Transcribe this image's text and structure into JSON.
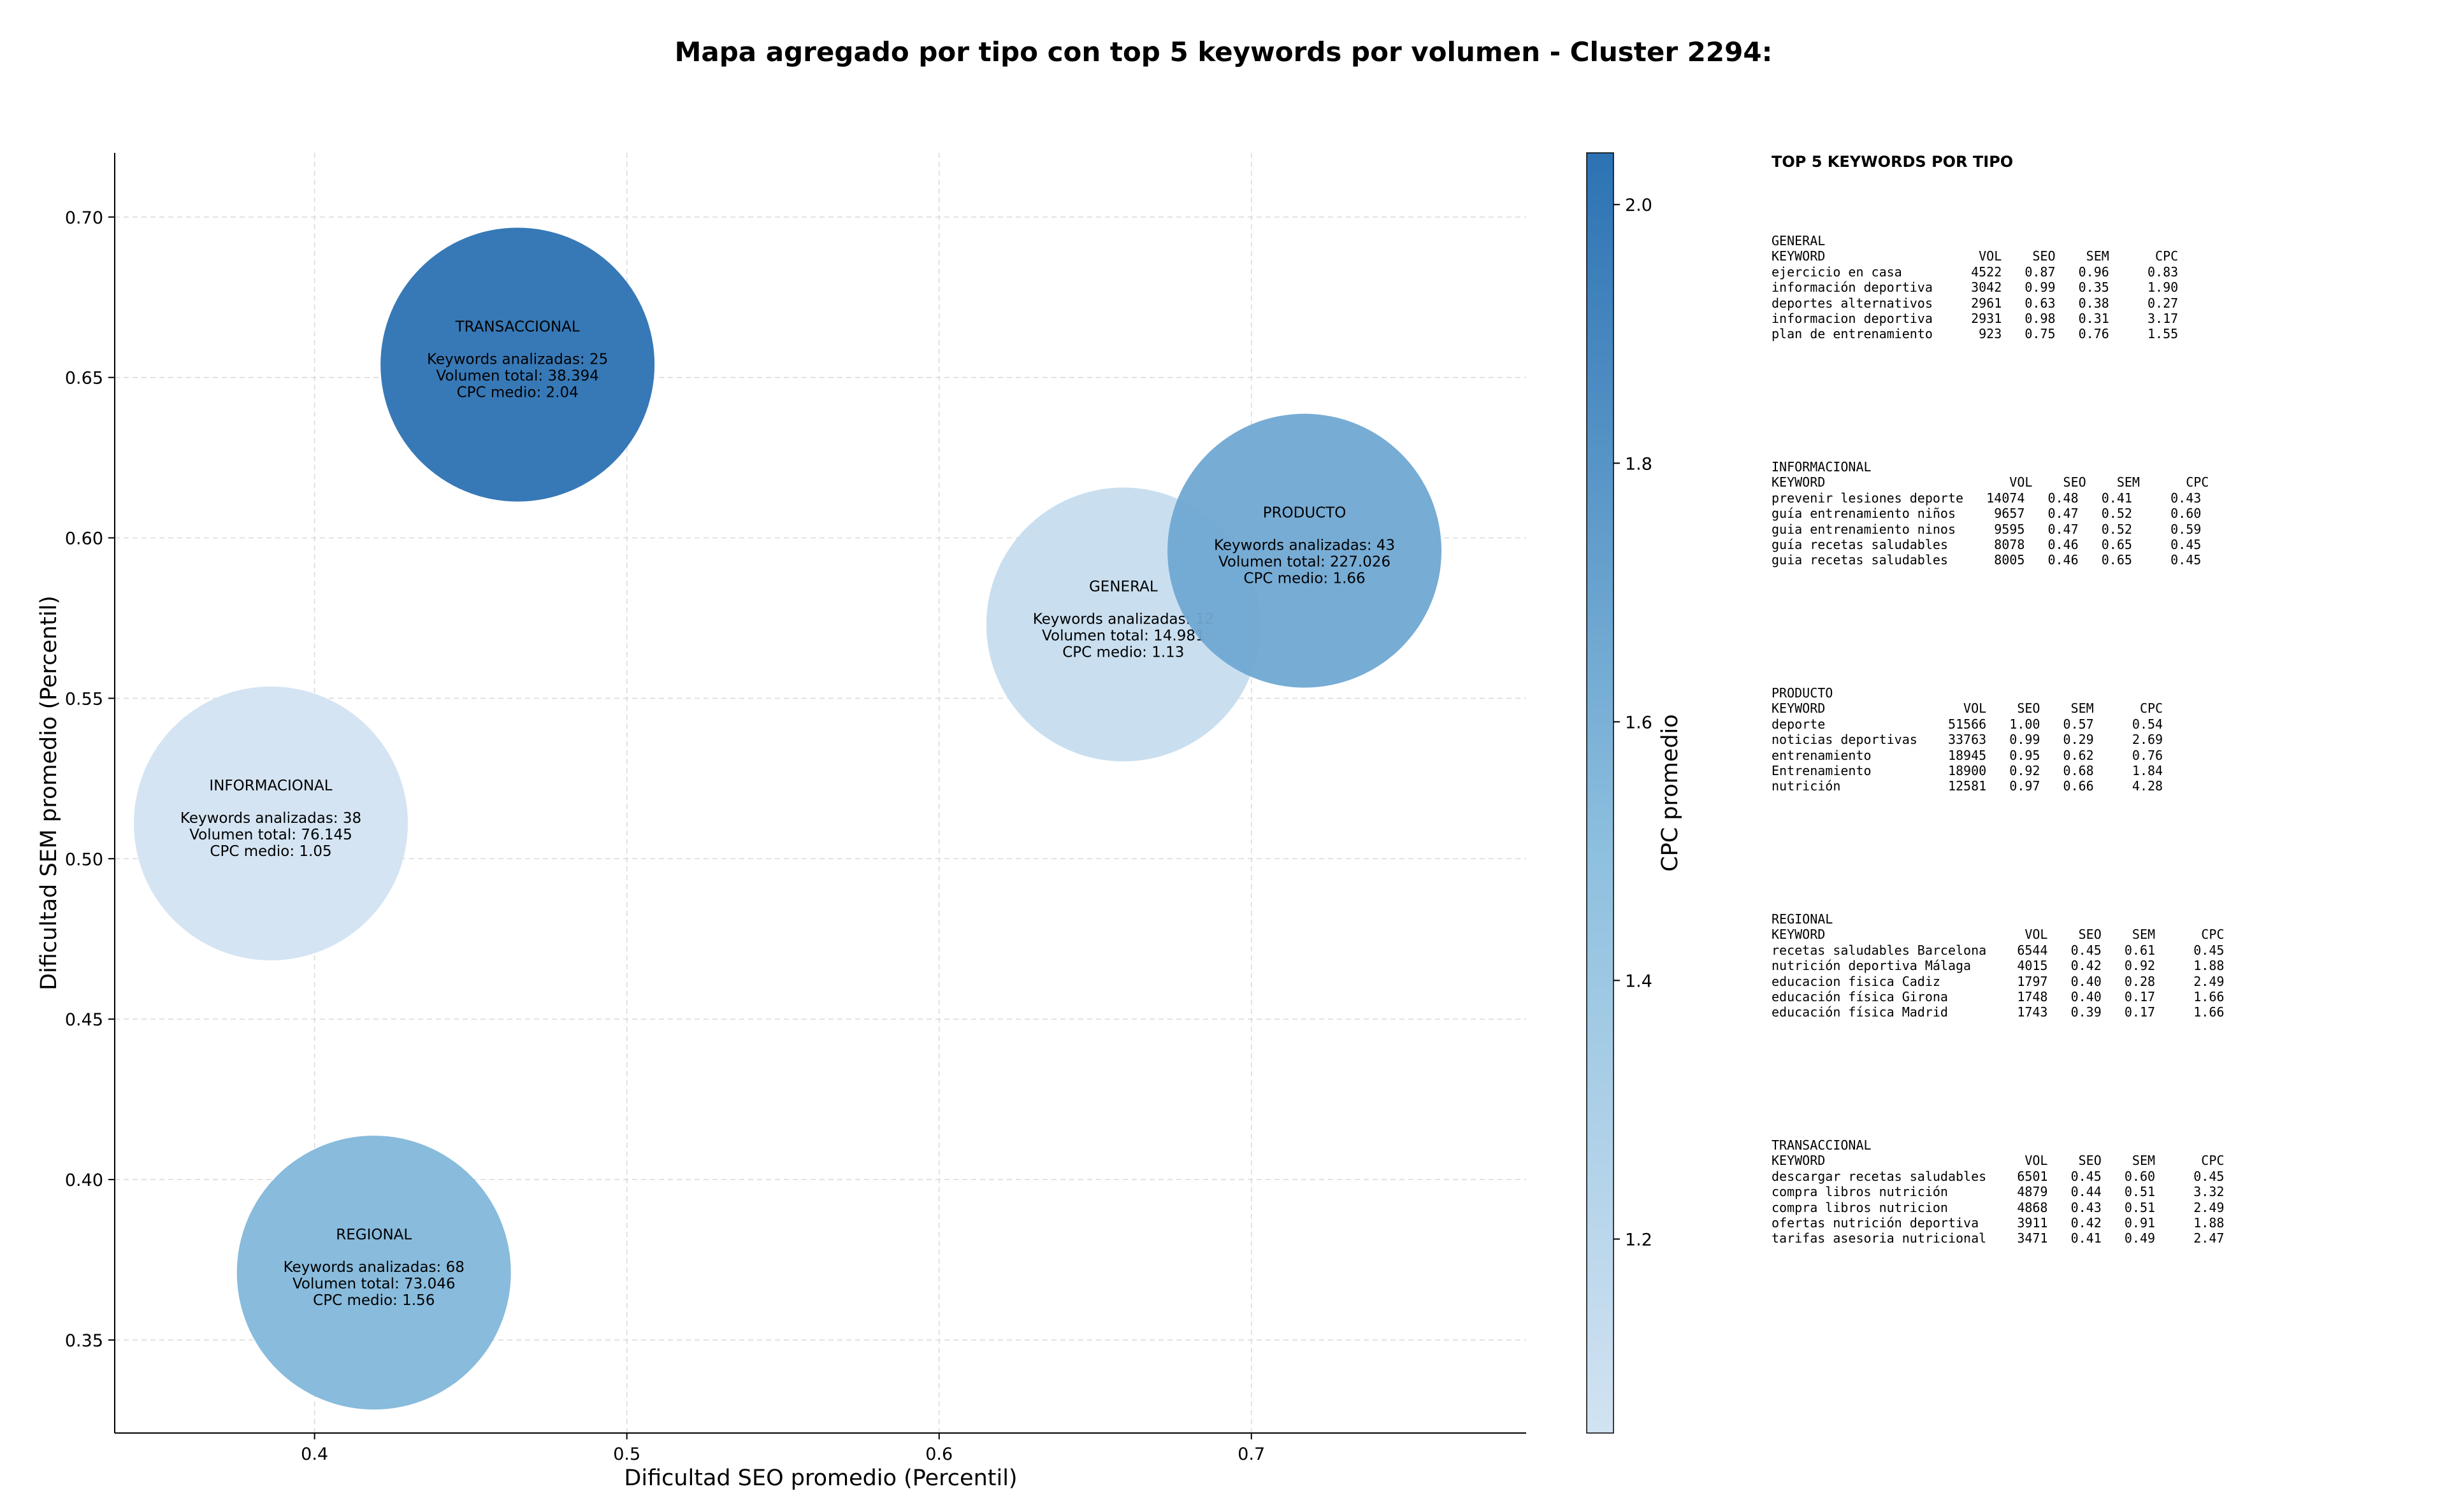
{
  "chart_data": {
    "type": "scatter",
    "title": "Mapa agregado por tipo con top 5 keywords por volumen - Cluster 2294:",
    "xlabel": "Dificultad SEO promedio (Percentil)",
    "ylabel": "Dificultad SEM promedio (Percentil)",
    "xlim": [
      0.336,
      0.788
    ],
    "ylim": [
      0.321,
      0.72
    ],
    "xticks": [
      0.4,
      0.5,
      0.6,
      0.7
    ],
    "yticks": [
      0.35,
      0.4,
      0.45,
      0.5,
      0.55,
      0.6,
      0.65,
      0.7
    ],
    "grid": true,
    "colorbar": {
      "label": "CPC promedio",
      "range": [
        1.05,
        2.04
      ],
      "ticks": [
        1.2,
        1.4,
        1.6,
        1.8,
        2.0
      ],
      "color_low": "#d2e3f2",
      "color_high": "#2c72b3"
    },
    "points": [
      {
        "name": "TRANSACCIONAL",
        "x": 0.465,
        "y": 0.654,
        "keywords_label": "Keywords analizadas: 25",
        "volume_label": "Volumen total: 38.394",
        "cpc_label": "CPC medio: 2.04",
        "cpc": 2.04
      },
      {
        "name": "GENERAL",
        "x": 0.659,
        "y": 0.573,
        "keywords_label": "Keywords analizadas: 12",
        "volume_label": "Volumen total: 14.981",
        "cpc_label": "CPC medio: 1.13",
        "cpc": 1.13
      },
      {
        "name": "PRODUCTO",
        "x": 0.717,
        "y": 0.596,
        "keywords_label": "Keywords analizadas: 43",
        "volume_label": "Volumen total: 227.026",
        "cpc_label": "CPC medio: 1.66",
        "cpc": 1.66
      },
      {
        "name": "INFORMACIONAL",
        "x": 0.386,
        "y": 0.511,
        "keywords_label": "Keywords analizadas: 38",
        "volume_label": "Volumen total: 76.145",
        "cpc_label": "CPC medio: 1.05",
        "cpc": 1.05
      },
      {
        "name": "REGIONAL",
        "x": 0.419,
        "y": 0.371,
        "keywords_label": "Keywords analizadas: 68",
        "volume_label": "Volumen total: 73.046",
        "cpc_label": "CPC medio: 1.56",
        "cpc": 1.56
      }
    ]
  },
  "keywords_panel": {
    "title": "TOP 5 KEYWORDS POR TIPO",
    "sections": [
      {
        "name": "GENERAL",
        "text": "GENERAL\nKEYWORD                    VOL    SEO    SEM      CPC\nejercicio en casa         4522   0.87   0.96     0.83\ninformación deportiva     3042   0.99   0.35     1.90\ndeportes alternativos     2961   0.63   0.38     0.27\ninformacion deportiva     2931   0.98   0.31     3.17\nplan de entrenamiento      923   0.75   0.76     1.55"
      },
      {
        "name": "INFORMACIONAL",
        "text": "INFORMACIONAL\nKEYWORD                        VOL    SEO    SEM      CPC\nprevenir lesiones deporte   14074   0.48   0.41     0.43\nguía entrenamiento niños     9657   0.47   0.52     0.60\nguia entrenamiento ninos     9595   0.47   0.52     0.59\nguía recetas saludables      8078   0.46   0.65     0.45\nguia recetas saludables      8005   0.46   0.65     0.45"
      },
      {
        "name": "PRODUCTO",
        "text": "PRODUCTO\nKEYWORD                  VOL    SEO    SEM      CPC\ndeporte                51566   1.00   0.57     0.54\nnoticias deportivas    33763   0.99   0.29     2.69\nentrenamiento          18945   0.95   0.62     0.76\nEntrenamiento          18900   0.92   0.68     1.84\nnutrición              12581   0.97   0.66     4.28"
      },
      {
        "name": "REGIONAL",
        "text": "REGIONAL\nKEYWORD                          VOL    SEO    SEM      CPC\nrecetas saludables Barcelona    6544   0.45   0.61     0.45\nnutrición deportiva Málaga      4015   0.42   0.92     1.88\neducacion fisica Cadiz          1797   0.40   0.28     2.49\neducación física Girona         1748   0.40   0.17     1.66\neducación física Madrid         1743   0.39   0.17     1.66"
      },
      {
        "name": "TRANSACCIONAL",
        "text": "TRANSACCIONAL\nKEYWORD                          VOL    SEO    SEM      CPC\ndescargar recetas saludables    6501   0.45   0.60     0.45\ncompra libros nutrición         4879   0.44   0.51     3.32\ncompra libros nutricion         4868   0.43   0.51     2.49\nofertas nutrición deportiva     3911   0.42   0.91     1.88\ntarifas asesoria nutricional    3471   0.41   0.49     2.47"
      }
    ]
  }
}
